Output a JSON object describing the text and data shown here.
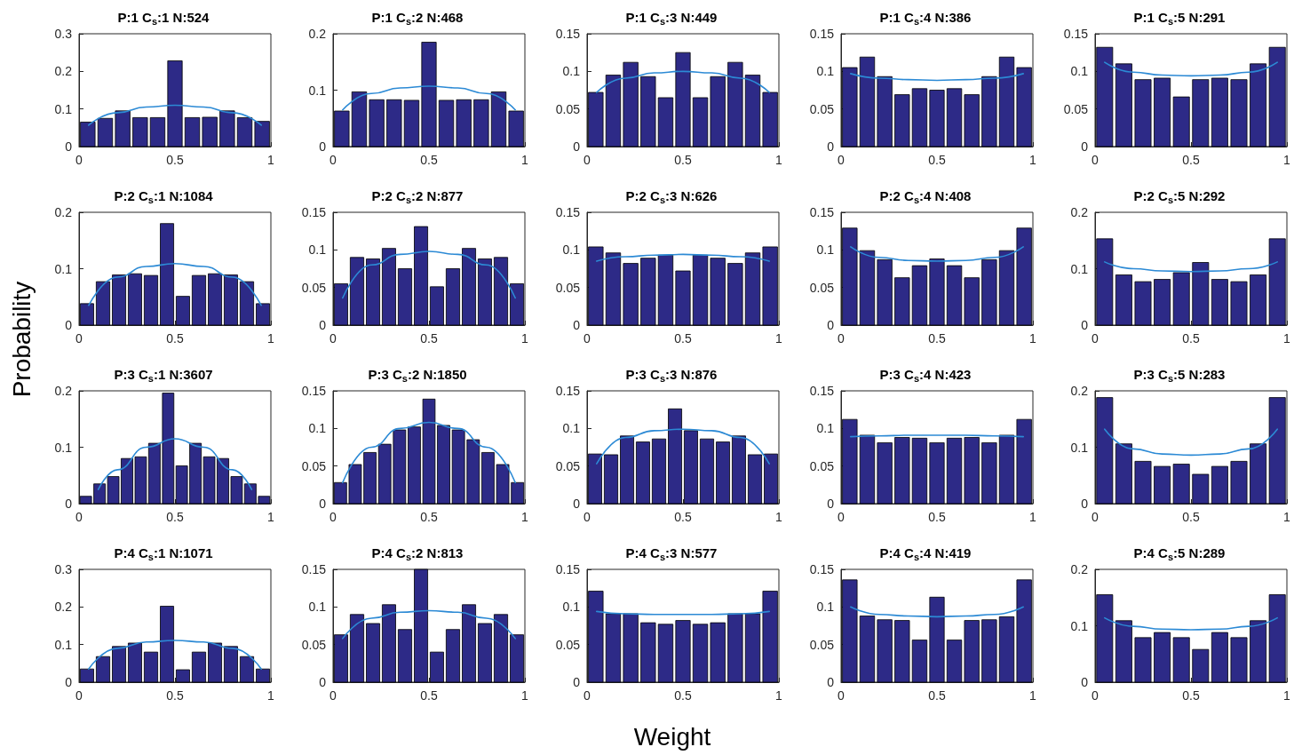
{
  "chart_data": [
    {
      "type": "histogram",
      "title": "P:1 C$_{s}$:1 N:524",
      "bins": [
        0,
        0.091,
        0.182,
        0.273,
        0.364,
        0.455,
        0.545,
        0.636,
        0.727,
        0.818,
        0.909,
        1
      ],
      "values": [
        0.065,
        0.075,
        0.095,
        0.077,
        0.077,
        0.228,
        0.077,
        0.078,
        0.095,
        0.077,
        0.067
      ],
      "color": "#2d2a87",
      "xlim": [
        0,
        1
      ],
      "xticks": [
        0,
        0.5,
        1
      ],
      "ylim": [
        0,
        0.3
      ],
      "yticks": [
        0,
        0.1,
        0.2,
        0.3
      ],
      "series": [
        {
          "type": "line",
          "x": [
            0.05,
            0.2,
            0.35,
            0.5,
            0.65,
            0.8,
            0.95
          ],
          "values": [
            0.057,
            0.09,
            0.105,
            0.11,
            0.105,
            0.09,
            0.057
          ],
          "color": "#2c8ad5"
        }
      ]
    },
    {
      "type": "histogram",
      "title": "P:1 C$_{s}$:2 N:468",
      "bins": [
        0,
        0.091,
        0.182,
        0.273,
        0.364,
        0.455,
        0.545,
        0.636,
        0.727,
        0.818,
        0.909,
        1
      ],
      "values": [
        0.063,
        0.097,
        0.083,
        0.083,
        0.082,
        0.185,
        0.082,
        0.083,
        0.083,
        0.097,
        0.063
      ],
      "color": "#2d2a87",
      "xlim": [
        0,
        1
      ],
      "xticks": [
        0,
        0.5,
        1
      ],
      "ylim": [
        0,
        0.2
      ],
      "yticks": [
        0,
        0.1,
        0.2
      ],
      "series": [
        {
          "type": "line",
          "x": [
            0.05,
            0.2,
            0.35,
            0.5,
            0.65,
            0.8,
            0.95
          ],
          "values": [
            0.065,
            0.094,
            0.104,
            0.107,
            0.104,
            0.094,
            0.065
          ],
          "color": "#2c8ad5"
        }
      ]
    },
    {
      "type": "histogram",
      "title": "P:1 C$_{s}$:3 N:449",
      "bins": [
        0,
        0.091,
        0.182,
        0.273,
        0.364,
        0.455,
        0.545,
        0.636,
        0.727,
        0.818,
        0.909,
        1
      ],
      "values": [
        0.072,
        0.095,
        0.112,
        0.093,
        0.065,
        0.125,
        0.065,
        0.093,
        0.112,
        0.095,
        0.072
      ],
      "color": "#2d2a87",
      "xlim": [
        0,
        1
      ],
      "xticks": [
        0,
        0.5,
        1
      ],
      "ylim": [
        0,
        0.15
      ],
      "yticks": [
        0,
        0.05,
        0.1,
        0.15
      ],
      "series": [
        {
          "type": "line",
          "x": [
            0.05,
            0.2,
            0.35,
            0.5,
            0.65,
            0.8,
            0.95
          ],
          "values": [
            0.072,
            0.091,
            0.098,
            0.1,
            0.098,
            0.091,
            0.072
          ],
          "color": "#2c8ad5"
        }
      ]
    },
    {
      "type": "histogram",
      "title": "P:1 C$_{s}$:4 N:386",
      "bins": [
        0,
        0.091,
        0.182,
        0.273,
        0.364,
        0.455,
        0.545,
        0.636,
        0.727,
        0.818,
        0.909,
        1
      ],
      "values": [
        0.105,
        0.119,
        0.093,
        0.069,
        0.077,
        0.075,
        0.077,
        0.069,
        0.093,
        0.119,
        0.105
      ],
      "color": "#2d2a87",
      "xlim": [
        0,
        1
      ],
      "xticks": [
        0,
        0.5,
        1
      ],
      "ylim": [
        0,
        0.15
      ],
      "yticks": [
        0,
        0.05,
        0.1,
        0.15
      ],
      "series": [
        {
          "type": "line",
          "x": [
            0.05,
            0.2,
            0.35,
            0.5,
            0.65,
            0.8,
            0.95
          ],
          "values": [
            0.097,
            0.091,
            0.089,
            0.088,
            0.089,
            0.091,
            0.097
          ],
          "color": "#2c8ad5"
        }
      ]
    },
    {
      "type": "histogram",
      "title": "P:1 C$_{s}$:5 N:291",
      "bins": [
        0,
        0.1,
        0.2,
        0.3,
        0.4,
        0.5,
        0.6,
        0.7,
        0.8,
        0.9,
        1
      ],
      "values": [
        0.132,
        0.11,
        0.089,
        0.091,
        0.066,
        0.089,
        0.091,
        0.089,
        0.11,
        0.132
      ],
      "color": "#2d2a87",
      "xlim": [
        0,
        1
      ],
      "xticks": [
        0,
        0.5,
        1
      ],
      "ylim": [
        0,
        0.15
      ],
      "yticks": [
        0,
        0.05,
        0.1,
        0.15
      ],
      "series": [
        {
          "type": "line",
          "x": [
            0.05,
            0.2,
            0.35,
            0.5,
            0.65,
            0.8,
            0.95
          ],
          "values": [
            0.112,
            0.099,
            0.095,
            0.094,
            0.095,
            0.099,
            0.112
          ],
          "color": "#2c8ad5"
        }
      ]
    },
    {
      "type": "histogram",
      "title": "P:2 C$_{s}$:1 N:1084",
      "bins": [
        0,
        0.083,
        0.167,
        0.25,
        0.333,
        0.417,
        0.5,
        0.583,
        0.667,
        0.75,
        0.833,
        0.917,
        1
      ],
      "values": [
        0.038,
        0.077,
        0.089,
        0.091,
        0.088,
        0.18,
        0.051,
        0.088,
        0.091,
        0.089,
        0.077,
        0.038
      ],
      "color": "#2d2a87",
      "xlim": [
        0,
        1
      ],
      "xticks": [
        0,
        0.5,
        1
      ],
      "ylim": [
        0,
        0.2
      ],
      "yticks": [
        0,
        0.1,
        0.2
      ],
      "series": [
        {
          "type": "line",
          "x": [
            0.05,
            0.2,
            0.35,
            0.5,
            0.65,
            0.8,
            0.95
          ],
          "values": [
            0.035,
            0.085,
            0.104,
            0.109,
            0.104,
            0.085,
            0.035
          ],
          "color": "#2c8ad5"
        }
      ]
    },
    {
      "type": "histogram",
      "title": "P:2 C$_{s}$:2 N:877",
      "bins": [
        0,
        0.083,
        0.167,
        0.25,
        0.333,
        0.417,
        0.5,
        0.583,
        0.667,
        0.75,
        0.833,
        0.917,
        1
      ],
      "values": [
        0.055,
        0.09,
        0.088,
        0.102,
        0.075,
        0.131,
        0.051,
        0.075,
        0.102,
        0.088,
        0.09,
        0.055
      ],
      "color": "#2d2a87",
      "xlim": [
        0,
        1
      ],
      "xticks": [
        0,
        0.5,
        1
      ],
      "ylim": [
        0,
        0.15
      ],
      "yticks": [
        0,
        0.05,
        0.1,
        0.15
      ],
      "series": [
        {
          "type": "line",
          "x": [
            0.05,
            0.2,
            0.35,
            0.5,
            0.65,
            0.8,
            0.95
          ],
          "values": [
            0.036,
            0.08,
            0.094,
            0.098,
            0.094,
            0.08,
            0.036
          ],
          "color": "#2c8ad5"
        }
      ]
    },
    {
      "type": "histogram",
      "title": "P:2 C$_{s}$:3 N:626",
      "bins": [
        0,
        0.091,
        0.182,
        0.273,
        0.364,
        0.455,
        0.545,
        0.636,
        0.727,
        0.818,
        0.909,
        1
      ],
      "values": [
        0.104,
        0.096,
        0.082,
        0.089,
        0.093,
        0.072,
        0.093,
        0.089,
        0.082,
        0.096,
        0.104
      ],
      "color": "#2d2a87",
      "xlim": [
        0,
        1
      ],
      "xticks": [
        0,
        0.5,
        1
      ],
      "ylim": [
        0,
        0.15
      ],
      "yticks": [
        0,
        0.05,
        0.1,
        0.15
      ],
      "series": [
        {
          "type": "line",
          "x": [
            0.05,
            0.2,
            0.35,
            0.5,
            0.65,
            0.8,
            0.95
          ],
          "values": [
            0.085,
            0.091,
            0.093,
            0.094,
            0.093,
            0.091,
            0.085
          ],
          "color": "#2c8ad5"
        }
      ]
    },
    {
      "type": "histogram",
      "title": "P:2 C$_{s}$:4 N:408",
      "bins": [
        0,
        0.091,
        0.182,
        0.273,
        0.364,
        0.455,
        0.545,
        0.636,
        0.727,
        0.818,
        0.909,
        1
      ],
      "values": [
        0.129,
        0.099,
        0.087,
        0.063,
        0.079,
        0.088,
        0.079,
        0.063,
        0.087,
        0.099,
        0.129
      ],
      "color": "#2d2a87",
      "xlim": [
        0,
        1
      ],
      "xticks": [
        0,
        0.5,
        1
      ],
      "ylim": [
        0,
        0.15
      ],
      "yticks": [
        0,
        0.05,
        0.1,
        0.15
      ],
      "series": [
        {
          "type": "line",
          "x": [
            0.05,
            0.2,
            0.35,
            0.5,
            0.65,
            0.8,
            0.95
          ],
          "values": [
            0.104,
            0.09,
            0.086,
            0.085,
            0.086,
            0.09,
            0.104
          ],
          "color": "#2c8ad5"
        }
      ]
    },
    {
      "type": "histogram",
      "title": "P:2 C$_{s}$:5 N:292",
      "bins": [
        0,
        0.1,
        0.2,
        0.3,
        0.4,
        0.5,
        0.6,
        0.7,
        0.8,
        0.9,
        1
      ],
      "values": [
        0.153,
        0.089,
        0.077,
        0.081,
        0.093,
        0.111,
        0.081,
        0.077,
        0.089,
        0.153
      ],
      "color": "#2d2a87",
      "xlim": [
        0,
        1
      ],
      "xticks": [
        0,
        0.5,
        1
      ],
      "ylim": [
        0,
        0.2
      ],
      "yticks": [
        0,
        0.1,
        0.2
      ],
      "series": [
        {
          "type": "line",
          "x": [
            0.05,
            0.2,
            0.35,
            0.5,
            0.65,
            0.8,
            0.95
          ],
          "values": [
            0.112,
            0.1,
            0.096,
            0.095,
            0.096,
            0.1,
            0.112
          ],
          "color": "#2c8ad5"
        }
      ]
    },
    {
      "type": "histogram",
      "title": "P:3 C$_{s}$:1 N:3607",
      "ylabel": "Probability",
      "bins": [
        0,
        0.071,
        0.143,
        0.214,
        0.286,
        0.357,
        0.429,
        0.5,
        0.571,
        0.643,
        0.714,
        0.786,
        0.857,
        0.929,
        1
      ],
      "values": [
        0.013,
        0.035,
        0.048,
        0.08,
        0.083,
        0.107,
        0.196,
        0.067,
        0.107,
        0.083,
        0.08,
        0.048,
        0.035,
        0.013
      ],
      "color": "#2d2a87",
      "xlim": [
        0,
        1
      ],
      "xticks": [
        0,
        0.5,
        1
      ],
      "ylim": [
        0,
        0.2
      ],
      "yticks": [
        0,
        0.1,
        0.2
      ],
      "series": [
        {
          "type": "line",
          "x": [
            0.1,
            0.2,
            0.35,
            0.5,
            0.65,
            0.8,
            0.9
          ],
          "values": [
            0.025,
            0.06,
            0.1,
            0.115,
            0.1,
            0.06,
            0.025
          ],
          "color": "#2c8ad5"
        }
      ]
    },
    {
      "type": "histogram",
      "title": "P:3 C$_{s}$:2 N:1850",
      "bins": [
        0,
        0.077,
        0.154,
        0.231,
        0.308,
        0.385,
        0.462,
        0.538,
        0.615,
        0.692,
        0.769,
        0.846,
        0.923,
        1
      ],
      "values": [
        0.028,
        0.052,
        0.068,
        0.079,
        0.098,
        0.102,
        0.139,
        0.104,
        0.098,
        0.085,
        0.068,
        0.052,
        0.028
      ],
      "color": "#2d2a87",
      "xlim": [
        0,
        1
      ],
      "xticks": [
        0,
        0.5,
        1
      ],
      "ylim": [
        0,
        0.15
      ],
      "yticks": [
        0,
        0.05,
        0.1,
        0.15
      ],
      "series": [
        {
          "type": "line",
          "x": [
            0.05,
            0.2,
            0.35,
            0.5,
            0.65,
            0.8,
            0.95
          ],
          "values": [
            0.028,
            0.075,
            0.1,
            0.108,
            0.1,
            0.075,
            0.028
          ],
          "color": "#2c8ad5"
        }
      ]
    },
    {
      "type": "histogram",
      "title": "P:3 C$_{s}$:3 N:876",
      "bins": [
        0,
        0.083,
        0.167,
        0.25,
        0.333,
        0.417,
        0.5,
        0.583,
        0.667,
        0.75,
        0.833,
        0.917,
        1
      ],
      "values": [
        0.066,
        0.065,
        0.09,
        0.082,
        0.086,
        0.126,
        0.097,
        0.086,
        0.082,
        0.09,
        0.065,
        0.066
      ],
      "color": "#2d2a87",
      "xlim": [
        0,
        1
      ],
      "xticks": [
        0,
        0.5,
        1
      ],
      "ylim": [
        0,
        0.15
      ],
      "yticks": [
        0,
        0.05,
        0.1,
        0.15
      ],
      "series": [
        {
          "type": "line",
          "x": [
            0.05,
            0.2,
            0.35,
            0.5,
            0.65,
            0.8,
            0.95
          ],
          "values": [
            0.053,
            0.088,
            0.097,
            0.099,
            0.097,
            0.088,
            0.053
          ],
          "color": "#2c8ad5"
        }
      ]
    },
    {
      "type": "histogram",
      "title": "P:3 C$_{s}$:4 N:423",
      "bins": [
        0,
        0.091,
        0.182,
        0.273,
        0.364,
        0.455,
        0.545,
        0.636,
        0.727,
        0.818,
        0.909,
        1
      ],
      "values": [
        0.112,
        0.091,
        0.081,
        0.088,
        0.087,
        0.081,
        0.087,
        0.088,
        0.081,
        0.091,
        0.112
      ],
      "color": "#2d2a87",
      "xlim": [
        0,
        1
      ],
      "xticks": [
        0,
        0.5,
        1
      ],
      "ylim": [
        0,
        0.15
      ],
      "yticks": [
        0,
        0.05,
        0.1,
        0.15
      ],
      "series": [
        {
          "type": "line",
          "x": [
            0.05,
            0.2,
            0.35,
            0.65,
            0.8,
            0.95
          ],
          "values": [
            0.089,
            0.09,
            0.091,
            0.091,
            0.09,
            0.089
          ],
          "color": "#2c8ad5"
        }
      ]
    },
    {
      "type": "histogram",
      "title": "P:3 C$_{s}$:5 N:283",
      "bins": [
        0,
        0.1,
        0.2,
        0.3,
        0.4,
        0.5,
        0.6,
        0.7,
        0.8,
        0.9,
        1
      ],
      "values": [
        0.188,
        0.106,
        0.075,
        0.066,
        0.07,
        0.052,
        0.066,
        0.075,
        0.106,
        0.188
      ],
      "color": "#2d2a87",
      "xlim": [
        0,
        1
      ],
      "xticks": [
        0,
        0.5,
        1
      ],
      "ylim": [
        0,
        0.2
      ],
      "yticks": [
        0,
        0.1,
        0.2
      ],
      "series": [
        {
          "type": "line",
          "x": [
            0.05,
            0.2,
            0.35,
            0.5,
            0.65,
            0.8,
            0.95
          ],
          "values": [
            0.132,
            0.097,
            0.088,
            0.086,
            0.088,
            0.097,
            0.132
          ],
          "color": "#2c8ad5"
        }
      ]
    },
    {
      "type": "histogram",
      "title": "P:4 C$_{s}$:1 N:1071",
      "bins": [
        0,
        0.083,
        0.167,
        0.25,
        0.333,
        0.417,
        0.5,
        0.583,
        0.667,
        0.75,
        0.833,
        0.917,
        1
      ],
      "values": [
        0.035,
        0.068,
        0.095,
        0.104,
        0.08,
        0.202,
        0.033,
        0.08,
        0.104,
        0.095,
        0.068,
        0.035
      ],
      "color": "#2d2a87",
      "xlim": [
        0,
        1
      ],
      "xticks": [
        0,
        0.5,
        1
      ],
      "ylim": [
        0,
        0.3
      ],
      "yticks": [
        0,
        0.1,
        0.2,
        0.3
      ],
      "series": [
        {
          "type": "line",
          "x": [
            0.05,
            0.2,
            0.35,
            0.5,
            0.65,
            0.8,
            0.95
          ],
          "values": [
            0.035,
            0.09,
            0.107,
            0.111,
            0.107,
            0.09,
            0.035
          ],
          "color": "#2c8ad5"
        }
      ]
    },
    {
      "type": "histogram",
      "title": "P:4 C$_{s}$:2 N:813",
      "bins": [
        0,
        0.083,
        0.167,
        0.25,
        0.333,
        0.417,
        0.5,
        0.583,
        0.667,
        0.75,
        0.833,
        0.917,
        1
      ],
      "values": [
        0.063,
        0.09,
        0.078,
        0.103,
        0.07,
        0.15,
        0.04,
        0.07,
        0.103,
        0.078,
        0.09,
        0.063
      ],
      "color": "#2d2a87",
      "xlim": [
        0,
        1
      ],
      "xticks": [
        0,
        0.5,
        1
      ],
      "ylim": [
        0,
        0.15
      ],
      "yticks": [
        0,
        0.05,
        0.1,
        0.15
      ],
      "series": [
        {
          "type": "line",
          "x": [
            0.05,
            0.2,
            0.35,
            0.5,
            0.65,
            0.8,
            0.95
          ],
          "values": [
            0.058,
            0.085,
            0.093,
            0.095,
            0.093,
            0.085,
            0.058
          ],
          "color": "#2c8ad5"
        }
      ]
    },
    {
      "type": "histogram",
      "title": "P:4 C$_{s}$:3 N:577",
      "xlabel": "Weight",
      "bins": [
        0,
        0.091,
        0.182,
        0.273,
        0.364,
        0.455,
        0.545,
        0.636,
        0.727,
        0.818,
        0.909,
        1
      ],
      "values": [
        0.121,
        0.091,
        0.091,
        0.079,
        0.077,
        0.082,
        0.077,
        0.079,
        0.091,
        0.091,
        0.121
      ],
      "color": "#2d2a87",
      "xlim": [
        0,
        1
      ],
      "xticks": [
        0,
        0.5,
        1
      ],
      "ylim": [
        0,
        0.15
      ],
      "yticks": [
        0,
        0.05,
        0.1,
        0.15
      ],
      "series": [
        {
          "type": "line",
          "x": [
            0.05,
            0.2,
            0.35,
            0.5,
            0.65,
            0.8,
            0.95
          ],
          "values": [
            0.094,
            0.091,
            0.09,
            0.09,
            0.09,
            0.091,
            0.094
          ],
          "color": "#2c8ad5"
        }
      ]
    },
    {
      "type": "histogram",
      "title": "P:4 C$_{s}$:4 N:419",
      "bins": [
        0,
        0.091,
        0.182,
        0.273,
        0.364,
        0.455,
        0.545,
        0.636,
        0.727,
        0.818,
        0.909,
        1
      ],
      "values": [
        0.136,
        0.088,
        0.083,
        0.082,
        0.056,
        0.113,
        0.056,
        0.082,
        0.083,
        0.087,
        0.136
      ],
      "color": "#2d2a87",
      "xlim": [
        0,
        1
      ],
      "xticks": [
        0,
        0.5,
        1
      ],
      "ylim": [
        0,
        0.15
      ],
      "yticks": [
        0,
        0.05,
        0.1,
        0.15
      ],
      "series": [
        {
          "type": "line",
          "x": [
            0.05,
            0.2,
            0.35,
            0.5,
            0.65,
            0.8,
            0.95
          ],
          "values": [
            0.1,
            0.09,
            0.088,
            0.087,
            0.088,
            0.09,
            0.1
          ],
          "color": "#2c8ad5"
        }
      ]
    },
    {
      "type": "histogram",
      "title": "P:4 C$_{s}$:5 N:289",
      "bins": [
        0,
        0.1,
        0.2,
        0.3,
        0.4,
        0.5,
        0.6,
        0.7,
        0.8,
        0.9,
        1
      ],
      "values": [
        0.155,
        0.109,
        0.079,
        0.088,
        0.079,
        0.058,
        0.088,
        0.079,
        0.109,
        0.155
      ],
      "color": "#2d2a87",
      "xlim": [
        0,
        1
      ],
      "xticks": [
        0,
        0.5,
        1
      ],
      "ylim": [
        0,
        0.2
      ],
      "yticks": [
        0,
        0.1,
        0.2
      ],
      "series": [
        {
          "type": "line",
          "x": [
            0.05,
            0.2,
            0.35,
            0.5,
            0.65,
            0.8,
            0.95
          ],
          "values": [
            0.114,
            0.099,
            0.094,
            0.093,
            0.094,
            0.099,
            0.114
          ],
          "color": "#2c8ad5"
        }
      ]
    }
  ]
}
